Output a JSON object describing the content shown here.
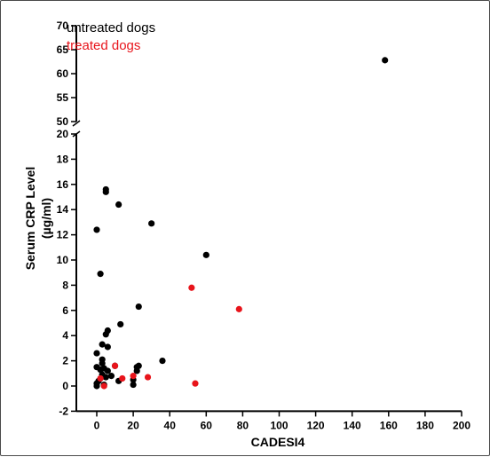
{
  "chart_data": {
    "type": "scatter",
    "title": "",
    "xlabel": "CADESI4",
    "ylabel_line1": "Serum CRP Level",
    "ylabel_line2": "(µg/ml)",
    "xlim": [
      -5,
      200
    ],
    "x_ticks": [
      0,
      20,
      40,
      60,
      80,
      100,
      120,
      140,
      160,
      180,
      200
    ],
    "y_lower": {
      "lim": [
        -2,
        20
      ],
      "ticks": [
        -2,
        0,
        2,
        4,
        6,
        8,
        10,
        12,
        14,
        16,
        18,
        20
      ]
    },
    "y_upper": {
      "lim": [
        50,
        70
      ],
      "ticks": [
        50,
        55,
        60,
        65,
        70
      ]
    },
    "axis_break": true,
    "grid": false,
    "legend_position": "top-left",
    "series": [
      {
        "name": "untreated dogs",
        "color": "#000000",
        "points": [
          [
            0,
            12.4
          ],
          [
            2,
            8.9
          ],
          [
            5,
            15.6
          ],
          [
            5,
            15.4
          ],
          [
            12,
            14.4
          ],
          [
            30,
            12.9
          ],
          [
            60,
            10.4
          ],
          [
            23,
            6.3
          ],
          [
            6,
            4.4
          ],
          [
            5,
            4.1
          ],
          [
            13,
            4.9
          ],
          [
            6,
            3.1
          ],
          [
            3,
            3.3
          ],
          [
            0,
            2.6
          ],
          [
            3,
            2.1
          ],
          [
            3,
            1.8
          ],
          [
            36,
            2.0
          ],
          [
            0,
            1.5
          ],
          [
            2,
            1.3
          ],
          [
            4,
            1.4
          ],
          [
            6,
            1.2
          ],
          [
            10,
            1.6
          ],
          [
            22,
            1.5
          ],
          [
            23,
            1.6
          ],
          [
            22,
            1.2
          ],
          [
            3,
            0.9
          ],
          [
            5,
            0.7
          ],
          [
            8,
            0.8
          ],
          [
            1,
            0.4
          ],
          [
            0,
            0.2
          ],
          [
            0,
            0.0
          ],
          [
            4,
            0.1
          ],
          [
            12,
            0.4
          ],
          [
            20,
            0.5
          ],
          [
            20,
            0.1
          ],
          [
            158,
            62.8
          ]
        ]
      },
      {
        "name": "treated dogs",
        "color": "#e8141b",
        "points": [
          [
            52,
            7.8
          ],
          [
            78,
            6.1
          ],
          [
            10,
            1.6
          ],
          [
            14,
            0.6
          ],
          [
            20,
            0.8
          ],
          [
            28,
            0.7
          ],
          [
            2,
            0.6
          ],
          [
            4,
            0.0
          ],
          [
            54,
            0.2
          ]
        ]
      }
    ]
  }
}
